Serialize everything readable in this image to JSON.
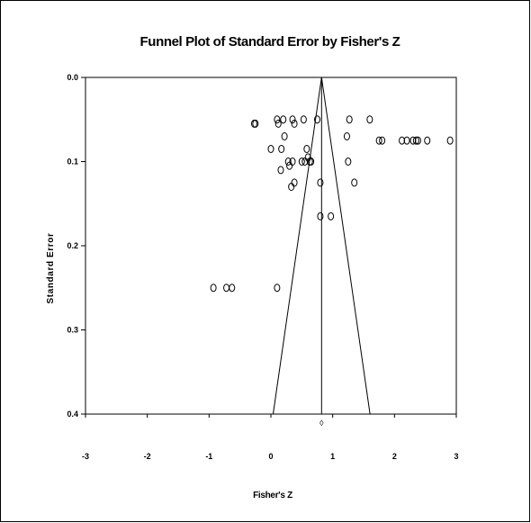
{
  "chart_data": {
    "type": "scatter",
    "title": "Funnel Plot of Standard Error by Fisher's Z",
    "xlabel": "Fisher's Z",
    "ylabel": "Standard Error",
    "xlim": [
      -3,
      3
    ],
    "ylim": [
      0.0,
      0.4
    ],
    "y_inverted": true,
    "x_ticks": [
      "-3",
      "-2",
      "-1",
      "0",
      "1",
      "2",
      "3"
    ],
    "y_ticks": [
      "0.0",
      "0.1",
      "0.2",
      "0.3",
      "0.4"
    ],
    "summary_effect": 0.82,
    "funnel": {
      "center": 0.82,
      "se_max": 0.4
    },
    "combined_marker": "◊",
    "grid": false,
    "series": [
      {
        "marker": "open-circle",
        "points": [
          [
            -0.27,
            0.055
          ],
          [
            -0.25,
            0.055
          ],
          [
            0.1,
            0.05
          ],
          [
            0.2,
            0.05
          ],
          [
            0.35,
            0.05
          ],
          [
            0.53,
            0.05
          ],
          [
            0.75,
            0.05
          ],
          [
            1.27,
            0.05
          ],
          [
            1.6,
            0.05
          ],
          [
            0.12,
            0.055
          ],
          [
            0.38,
            0.055
          ],
          [
            0.22,
            0.07
          ],
          [
            1.23,
            0.07
          ],
          [
            1.75,
            0.075
          ],
          [
            1.8,
            0.075
          ],
          [
            2.12,
            0.075
          ],
          [
            2.2,
            0.075
          ],
          [
            2.3,
            0.075
          ],
          [
            2.35,
            0.075
          ],
          [
            2.38,
            0.075
          ],
          [
            2.53,
            0.075
          ],
          [
            2.9,
            0.075
          ],
          [
            0.0,
            0.085
          ],
          [
            0.17,
            0.085
          ],
          [
            0.58,
            0.085
          ],
          [
            0.6,
            0.095
          ],
          [
            0.28,
            0.1
          ],
          [
            0.35,
            0.1
          ],
          [
            0.5,
            0.1
          ],
          [
            0.55,
            0.1
          ],
          [
            0.63,
            0.1
          ],
          [
            0.65,
            0.1
          ],
          [
            1.25,
            0.1
          ],
          [
            0.16,
            0.11
          ],
          [
            0.3,
            0.105
          ],
          [
            0.38,
            0.125
          ],
          [
            0.33,
            0.13
          ],
          [
            0.8,
            0.125
          ],
          [
            1.35,
            0.125
          ],
          [
            0.8,
            0.165
          ],
          [
            0.97,
            0.165
          ],
          [
            -0.93,
            0.25
          ],
          [
            -0.72,
            0.25
          ],
          [
            -0.63,
            0.25
          ],
          [
            0.1,
            0.25
          ]
        ]
      }
    ]
  }
}
